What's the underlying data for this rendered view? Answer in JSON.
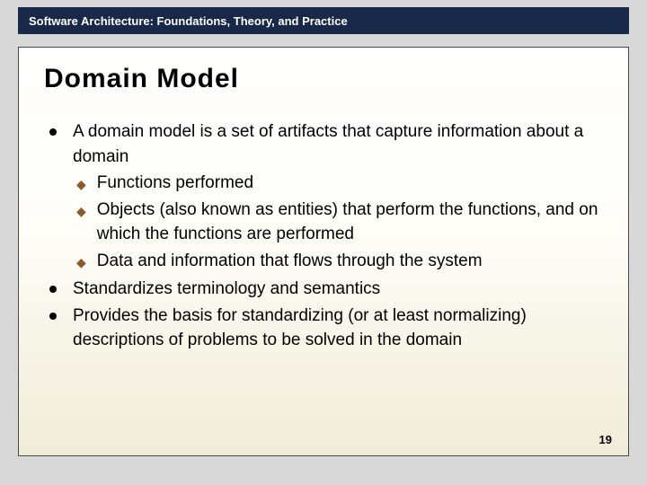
{
  "header": {
    "text": "Software Architecture: Foundations, Theory, and Practice",
    "background_color": "#182848",
    "text_color": "#ffffff",
    "font_size": 13
  },
  "title": {
    "text": "Domain Model",
    "font_size": 30,
    "color": "#000000"
  },
  "content_frame": {
    "border_color": "#4a4a4a",
    "gradient_top": "#ffffff",
    "gradient_bottom": "#f0ecd8"
  },
  "body": {
    "font_size": 19,
    "text_color": "#000000",
    "bullet_color": "#000000",
    "sub_marker_color": "#8a5a2a",
    "bullets": [
      {
        "text": "A domain model is a set of artifacts that capture information about a domain",
        "sub": [
          "Functions performed",
          "Objects (also known as entities) that perform the functions, and on which the functions are performed",
          "Data and information that flows through the system"
        ]
      },
      {
        "text": "Standardizes terminology and semantics",
        "sub": []
      },
      {
        "text": "Provides the basis for standardizing (or at least normalizing) descriptions of problems to be solved in the domain",
        "sub": []
      }
    ]
  },
  "page_number": "19",
  "slide_background": "#d8d8d8"
}
